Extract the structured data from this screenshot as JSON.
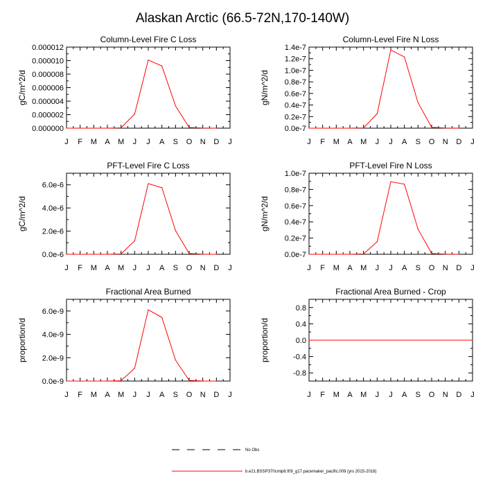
{
  "title": "Alaskan Arctic (66.5-72N,170-140W)",
  "months": [
    "J",
    "F",
    "M",
    "A",
    "M",
    "J",
    "J",
    "A",
    "S",
    "O",
    "N",
    "D",
    "J"
  ],
  "line_color": "#ff0000",
  "legend": {
    "obs_label": "No Obs",
    "model_label": "b.e21.BSSP370cmip6.f09_g17.pacemaker_pacific.009 (yrs 2015-2018)"
  },
  "chart_data": [
    {
      "type": "line",
      "title": "Column-Level Fire C Loss",
      "ylabel": "gC/m^2/d",
      "ylim": [
        0,
        1.2e-05
      ],
      "yticks": [
        0,
        2e-06,
        4e-06,
        6e-06,
        8e-06,
        1e-05,
        1.2e-05
      ],
      "ytick_labels": [
        "0.000000",
        "0.000002",
        "0.000004",
        "0.000006",
        "0.000008",
        "0.000010",
        "0.000012"
      ],
      "x": [
        1,
        2,
        3,
        4,
        5,
        6,
        7,
        8,
        9,
        10,
        11,
        12
      ],
      "values": [
        0,
        0,
        0,
        0,
        5e-08,
        2.1e-06,
        1.01e-05,
        9.2e-06,
        3.3e-06,
        1e-07,
        2e-08,
        0
      ]
    },
    {
      "type": "line",
      "title": "Column-Level Fire N Loss",
      "ylabel": "gN/m^2/d",
      "ylim": [
        0,
        1.4e-07
      ],
      "yticks": [
        0,
        2e-08,
        4e-08,
        6e-08,
        8e-08,
        1e-07,
        1.2e-07,
        1.4e-07
      ],
      "ytick_labels": [
        "0.0e-7",
        "0.2e-7",
        "0.4e-7",
        "0.6e-7",
        "0.8e-7",
        "1.0e-7",
        "1.2e-7",
        "1.4e-7"
      ],
      "x": [
        1,
        2,
        3,
        4,
        5,
        6,
        7,
        8,
        9,
        10,
        11,
        12
      ],
      "values": [
        0,
        0,
        0,
        0,
        5e-10,
        2.5e-08,
        1.35e-07,
        1.23e-07,
        4.4e-08,
        1.5e-09,
        3e-10,
        0
      ]
    },
    {
      "type": "line",
      "title": "PFT-Level Fire C Loss",
      "ylabel": "gC/m^2/d",
      "ylim": [
        0,
        7e-06
      ],
      "yticks": [
        0,
        2e-06,
        4e-06,
        6e-06
      ],
      "ytick_labels": [
        "0.0e-6",
        "2.0e-6",
        "4.0e-6",
        "6.0e-6"
      ],
      "x": [
        1,
        2,
        3,
        4,
        5,
        6,
        7,
        8,
        9,
        10,
        11,
        12
      ],
      "values": [
        0,
        0,
        0,
        0,
        3e-08,
        1.15e-06,
        6.1e-06,
        5.75e-06,
        2.05e-06,
        7e-08,
        1e-08,
        0
      ]
    },
    {
      "type": "line",
      "title": "PFT-Level Fire N Loss",
      "ylabel": "gN/m^2/d",
      "ylim": [
        0,
        1e-07
      ],
      "yticks": [
        0,
        2e-08,
        4e-08,
        6e-08,
        8e-08,
        1e-07
      ],
      "ytick_labels": [
        "0.0e-7",
        "0.2e-7",
        "0.4e-7",
        "0.6e-7",
        "0.8e-7",
        "1.0e-7"
      ],
      "x": [
        1,
        2,
        3,
        4,
        5,
        6,
        7,
        8,
        9,
        10,
        11,
        12
      ],
      "values": [
        0,
        0,
        0,
        0,
        4e-10,
        1.55e-08,
        8.95e-08,
        8.65e-08,
        3.1e-08,
        1e-09,
        2e-10,
        0
      ]
    },
    {
      "type": "line",
      "title": "Fractional Area Burned",
      "ylabel": "proportion/d",
      "ylim": [
        0,
        7e-09
      ],
      "yticks": [
        0,
        2e-09,
        4e-09,
        6e-09
      ],
      "ytick_labels": [
        "0.0e-9",
        "2.0e-9",
        "4.0e-9",
        "6.0e-9"
      ],
      "x": [
        1,
        2,
        3,
        4,
        5,
        6,
        7,
        8,
        9,
        10,
        11,
        12
      ],
      "values": [
        0,
        0,
        0,
        0,
        3e-11,
        1.1e-09,
        6.1e-09,
        5.45e-09,
        1.8e-09,
        6e-11,
        1e-11,
        0
      ]
    },
    {
      "type": "line",
      "title": "Fractional Area Burned - Crop",
      "ylabel": "proportion/d",
      "ylim": [
        -1.0,
        1.0
      ],
      "yticks": [
        -0.8,
        -0.4,
        0,
        0.4,
        0.8
      ],
      "ytick_labels": [
        "-0.8",
        "-0.4",
        "0.0",
        "0.4",
        "0.8"
      ],
      "x": [
        1,
        2,
        3,
        4,
        5,
        6,
        7,
        8,
        9,
        10,
        11,
        12
      ],
      "values": [
        0,
        0,
        0,
        0,
        0,
        0,
        0,
        0,
        0,
        0,
        0,
        0
      ],
      "extend_to": 13
    }
  ]
}
